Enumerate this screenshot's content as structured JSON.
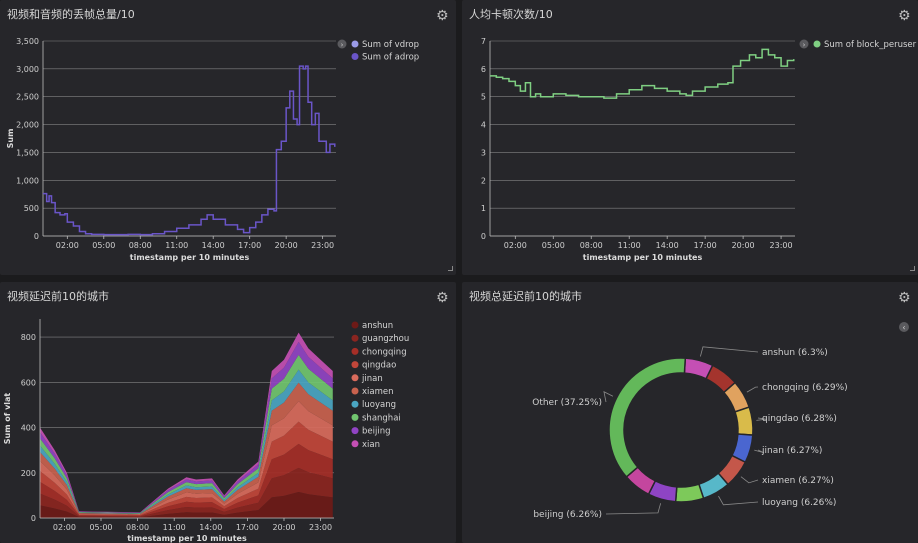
{
  "panels": [
    {
      "title": "视频和音频的丢帧总量/10"
    },
    {
      "title": "人均卡顿次数/10"
    },
    {
      "title": "视频延迟前10的城市"
    },
    {
      "title": "视频总延迟前10的城市"
    }
  ],
  "icons": {
    "gear": "gear-icon",
    "legend_toggle": "chevron-icon"
  },
  "chart_data": [
    {
      "type": "line",
      "title": "视频和音频的丢帧总量/10",
      "xlabel": "timestamp per 10 minutes",
      "ylabel": "Sum",
      "xticks": [
        "02:00",
        "05:00",
        "08:00",
        "11:00",
        "14:00",
        "17:00",
        "20:00",
        "23:00"
      ],
      "yticks": [
        "0",
        "500",
        "1,000",
        "1,500",
        "2,000",
        "2,500",
        "3,000",
        "3,500"
      ],
      "ylim": [
        0,
        3500
      ],
      "xlim_hours": [
        0,
        24.1
      ],
      "legend": [
        "Sum of vdrop",
        "Sum of adrop"
      ],
      "legend_colors": [
        "#9a9ae8",
        "#6a55c8"
      ],
      "series": [
        {
          "name": "Sum of adrop",
          "color": "#6a55c8",
          "points": [
            [
              0,
              760
            ],
            [
              0.3,
              620
            ],
            [
              0.5,
              720
            ],
            [
              0.7,
              600
            ],
            [
              1,
              420
            ],
            [
              1.4,
              380
            ],
            [
              1.8,
              400
            ],
            [
              2,
              250
            ],
            [
              2.5,
              180
            ],
            [
              3,
              80
            ],
            [
              3.5,
              40
            ],
            [
              4,
              30
            ],
            [
              5,
              25
            ],
            [
              6,
              25
            ],
            [
              7,
              30
            ],
            [
              8,
              25
            ],
            [
              9,
              40
            ],
            [
              10,
              80
            ],
            [
              11,
              140
            ],
            [
              12,
              200
            ],
            [
              13,
              300
            ],
            [
              13.5,
              380
            ],
            [
              14,
              300
            ],
            [
              15,
              200
            ],
            [
              16,
              120
            ],
            [
              16.5,
              60
            ],
            [
              17,
              150
            ],
            [
              17.5,
              250
            ],
            [
              18,
              380
            ],
            [
              18.5,
              480
            ],
            [
              19,
              450
            ],
            [
              19.2,
              1550
            ],
            [
              19.6,
              1700
            ],
            [
              20,
              2300
            ],
            [
              20.3,
              2600
            ],
            [
              20.6,
              2100
            ],
            [
              20.9,
              2000
            ],
            [
              21.1,
              3050
            ],
            [
              21.4,
              3000
            ],
            [
              21.6,
              3050
            ],
            [
              21.8,
              2400
            ],
            [
              22.1,
              2000
            ],
            [
              22.4,
              2200
            ],
            [
              22.7,
              1700
            ],
            [
              23,
              1700
            ],
            [
              23.3,
              1500
            ],
            [
              23.6,
              1650
            ],
            [
              24,
              1600
            ]
          ]
        }
      ]
    },
    {
      "type": "line",
      "title": "人均卡顿次数/10",
      "xlabel": "timestamp per 10 minutes",
      "ylabel": "Sum of block_peruser",
      "xticks": [
        "02:00",
        "05:00",
        "08:00",
        "11:00",
        "14:00",
        "17:00",
        "20:00",
        "23:00"
      ],
      "yticks": [
        "0",
        "1",
        "2",
        "3",
        "4",
        "5",
        "6",
        "7"
      ],
      "ylim": [
        0,
        7
      ],
      "xlim_hours": [
        0,
        24.1
      ],
      "legend": [
        "Sum of block_peruser"
      ],
      "legend_colors": [
        "#7fcf82"
      ],
      "series": [
        {
          "name": "Sum of block_peruser",
          "color": "#7fcf82",
          "points": [
            [
              0,
              5.75
            ],
            [
              0.5,
              5.7
            ],
            [
              1,
              5.65
            ],
            [
              1.5,
              5.55
            ],
            [
              2,
              5.4
            ],
            [
              2.4,
              5.2
            ],
            [
              2.8,
              5.5
            ],
            [
              3.2,
              5.0
            ],
            [
              3.6,
              5.1
            ],
            [
              4,
              5.0
            ],
            [
              5,
              5.1
            ],
            [
              6,
              5.05
            ],
            [
              7,
              5.0
            ],
            [
              8,
              5.0
            ],
            [
              9,
              4.95
            ],
            [
              10,
              5.1
            ],
            [
              11,
              5.25
            ],
            [
              12,
              5.4
            ],
            [
              13,
              5.3
            ],
            [
              14,
              5.2
            ],
            [
              15,
              5.1
            ],
            [
              15.5,
              5.05
            ],
            [
              16,
              5.2
            ],
            [
              17,
              5.35
            ],
            [
              18,
              5.45
            ],
            [
              18.8,
              5.5
            ],
            [
              19.2,
              6.1
            ],
            [
              19.8,
              6.3
            ],
            [
              20.5,
              6.5
            ],
            [
              21,
              6.4
            ],
            [
              21.5,
              6.7
            ],
            [
              22,
              6.5
            ],
            [
              22.5,
              6.4
            ],
            [
              23,
              6.1
            ],
            [
              23.5,
              6.3
            ],
            [
              24,
              6.35
            ]
          ]
        }
      ]
    },
    {
      "type": "area",
      "title": "视频延迟前10的城市",
      "xlabel": "timestamp per 10 minutes",
      "ylabel": "Sum of vlat",
      "xticks": [
        "02:00",
        "05:00",
        "08:00",
        "11:00",
        "14:00",
        "17:00",
        "20:00",
        "23:00"
      ],
      "yticks": [
        "0",
        "200",
        "400",
        "600",
        "800"
      ],
      "ylim": [
        0,
        880
      ],
      "xlim_hours": [
        0,
        24.1
      ],
      "stacked": true,
      "time": [
        0,
        1.2,
        2.2,
        3.2,
        8.2,
        10.5,
        12,
        12.8,
        14.1,
        15.1,
        16.2,
        17.9,
        19,
        20,
        21.2,
        22,
        23,
        24
      ],
      "total": [
        400,
        300,
        200,
        30,
        25,
        130,
        180,
        170,
        175,
        100,
        170,
        250,
        650,
        700,
        820,
        750,
        700,
        650
      ],
      "series": [
        {
          "name": "anshun",
          "color": "#6e1a17"
        },
        {
          "name": "guangzhou",
          "color": "#8b2520"
        },
        {
          "name": "chongqing",
          "color": "#a52e27"
        },
        {
          "name": "qingdao",
          "color": "#c2463a"
        },
        {
          "name": "jinan",
          "color": "#d96b5c"
        },
        {
          "name": "xiamen",
          "color": "#c9624e"
        },
        {
          "name": "luoyang",
          "color": "#4aa6c2"
        },
        {
          "name": "shanghai",
          "color": "#71c56f"
        },
        {
          "name": "beijing",
          "color": "#9144c4"
        },
        {
          "name": "xian",
          "color": "#c44fb4"
        }
      ],
      "shares": [
        0.14,
        0.13,
        0.13,
        0.12,
        0.11,
        0.1,
        0.07,
        0.08,
        0.07,
        0.05
      ]
    },
    {
      "type": "pie",
      "title": "视频总延迟前10的城市",
      "donut": true,
      "slices": [
        {
          "name": "anshun",
          "value": 6.3,
          "label": "anshun (6.3%)",
          "color": "#c44fb4"
        },
        {
          "name": "guangzhou",
          "value": 6.3,
          "label": "",
          "color": "#a4342d"
        },
        {
          "name": "chongqing",
          "value": 6.29,
          "label": "chongqing (6.29%)",
          "color": "#e0a25f"
        },
        {
          "name": "qingdao",
          "value": 6.28,
          "label": "qingdao (6.28%)",
          "color": "#d9bb4a"
        },
        {
          "name": "jinan",
          "value": 6.27,
          "label": "jinan (6.27%)",
          "color": "#4a66d0"
        },
        {
          "name": "xiamen",
          "value": 6.27,
          "label": "xiamen (6.27%)",
          "color": "#c4574a"
        },
        {
          "name": "luoyang",
          "value": 6.26,
          "label": "luoyang (6.26%)",
          "color": "#57b8c9"
        },
        {
          "name": "shanghai",
          "value": 6.26,
          "label": "",
          "color": "#7dc95a"
        },
        {
          "name": "beijing",
          "value": 6.26,
          "label": "beijing (6.26%)",
          "color": "#8e44c4"
        },
        {
          "name": "xian",
          "value": 6.26,
          "label": "",
          "color": "#c4469e"
        },
        {
          "name": "Other",
          "value": 37.25,
          "label": "Other (37.25%)",
          "color": "#63b85a"
        }
      ]
    }
  ]
}
